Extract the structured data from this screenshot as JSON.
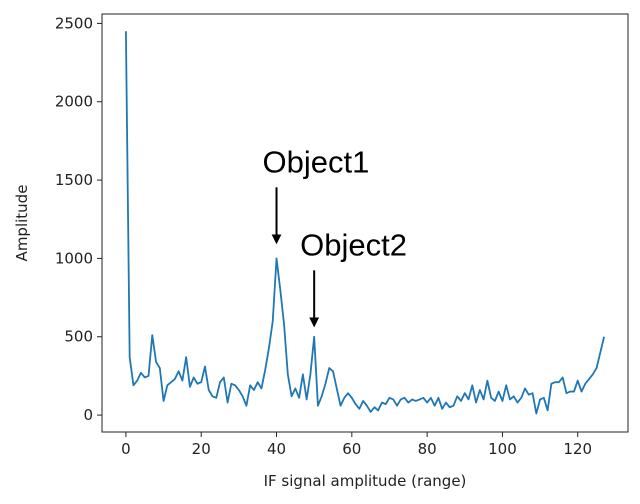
{
  "chart_data": {
    "type": "line",
    "xlabel": "IF signal amplitude (range)",
    "ylabel": "Amplitude",
    "x": [
      0,
      1,
      2,
      3,
      4,
      5,
      6,
      7,
      8,
      9,
      10,
      11,
      12,
      13,
      14,
      15,
      16,
      17,
      18,
      19,
      20,
      21,
      22,
      23,
      24,
      25,
      26,
      27,
      28,
      29,
      30,
      31,
      32,
      33,
      34,
      35,
      36,
      37,
      38,
      39,
      40,
      41,
      42,
      43,
      44,
      45,
      46,
      47,
      48,
      49,
      50,
      51,
      52,
      53,
      54,
      55,
      56,
      57,
      58,
      59,
      60,
      61,
      62,
      63,
      64,
      65,
      66,
      67,
      68,
      69,
      70,
      71,
      72,
      73,
      74,
      75,
      76,
      77,
      78,
      79,
      80,
      81,
      82,
      83,
      84,
      85,
      86,
      87,
      88,
      89,
      90,
      91,
      92,
      93,
      94,
      95,
      96,
      97,
      98,
      99,
      100,
      101,
      102,
      103,
      104,
      105,
      106,
      107,
      108,
      109,
      110,
      111,
      112,
      113,
      114,
      115,
      116,
      117,
      118,
      119,
      120,
      121,
      122,
      123,
      124,
      125,
      126,
      127
    ],
    "series": [
      {
        "color": "#1f77b4",
        "values": [
          2450,
          370,
          190,
          220,
          270,
          240,
          250,
          510,
          340,
          300,
          90,
          190,
          210,
          230,
          280,
          220,
          370,
          180,
          240,
          200,
          210,
          310,
          160,
          120,
          110,
          210,
          240,
          80,
          200,
          190,
          160,
          120,
          60,
          190,
          160,
          210,
          170,
          290,
          430,
          600,
          1000,
          800,
          580,
          260,
          120,
          170,
          110,
          260,
          100,
          260,
          500,
          60,
          120,
          200,
          300,
          280,
          170,
          60,
          110,
          140,
          110,
          70,
          40,
          90,
          60,
          20,
          50,
          30,
          80,
          70,
          110,
          100,
          60,
          100,
          110,
          80,
          100,
          90,
          100,
          110,
          80,
          110,
          60,
          110,
          40,
          80,
          50,
          60,
          120,
          90,
          140,
          100,
          190,
          80,
          160,
          100,
          220,
          110,
          90,
          150,
          90,
          190,
          100,
          120,
          80,
          110,
          170,
          130,
          140,
          10,
          100,
          110,
          30,
          200,
          210,
          210,
          240,
          140,
          150,
          150,
          220,
          150,
          200,
          230,
          260,
          300,
          400,
          500
        ]
      }
    ],
    "annotations": [
      {
        "text": "Object1",
        "x": 40,
        "y": 1090
      },
      {
        "text": "Object2",
        "x": 50,
        "y": 560
      }
    ],
    "xlim": [
      -6.35,
      133.35
    ],
    "ylim": [
      -108,
      2560
    ],
    "xticks": [
      0,
      20,
      40,
      60,
      80,
      100,
      120
    ],
    "yticks": [
      0,
      500,
      1000,
      1500,
      2000,
      2500
    ],
    "grid": false
  }
}
